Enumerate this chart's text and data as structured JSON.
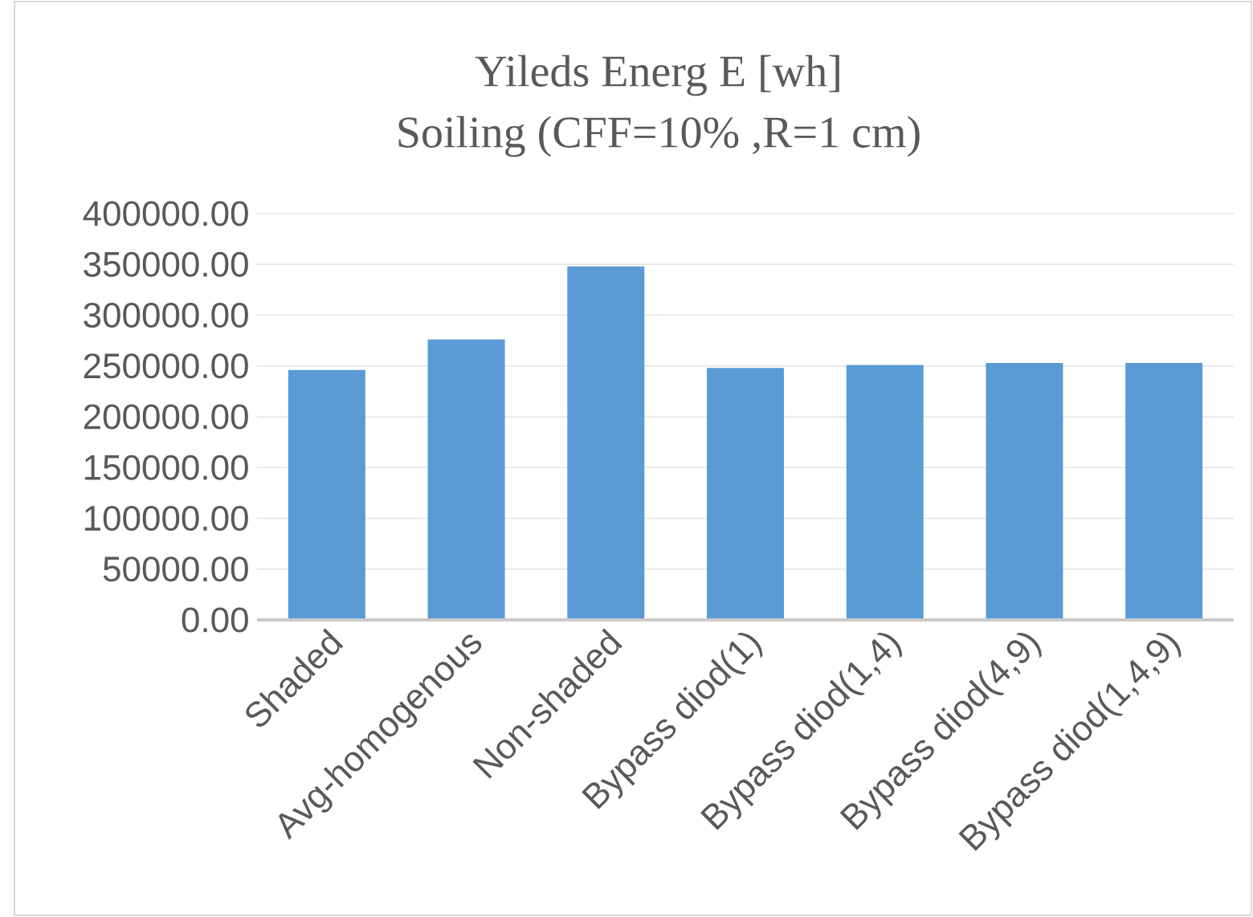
{
  "chart_data": {
    "type": "bar",
    "title": "Yileds Energ E [wh]",
    "subtitle": "Soiling (CFF=10% ,R=1 cm)",
    "categories": [
      "Shaded",
      "Avg-homogenous",
      "Non-shaded",
      "Bypass diod(1)",
      "Bypass diod(1,4)",
      "Bypass diod(4,9)",
      "Bypass diod(1,4,9)"
    ],
    "values": [
      246000,
      276000,
      348000,
      248000,
      251000,
      253000,
      253000
    ],
    "color": "#5b9bd5",
    "ylim": [
      0,
      400000
    ],
    "yticks": [
      {
        "value": 0,
        "label": "0.00"
      },
      {
        "value": 50000,
        "label": "50000.00"
      },
      {
        "value": 100000,
        "label": "100000.00"
      },
      {
        "value": 150000,
        "label": "150000.00"
      },
      {
        "value": 200000,
        "label": "200000.00"
      },
      {
        "value": 250000,
        "label": "250000.00"
      },
      {
        "value": 300000,
        "label": "300000.00"
      },
      {
        "value": 350000,
        "label": "350000.00"
      },
      {
        "value": 400000,
        "label": "400000.00"
      }
    ],
    "grid": "y"
  }
}
